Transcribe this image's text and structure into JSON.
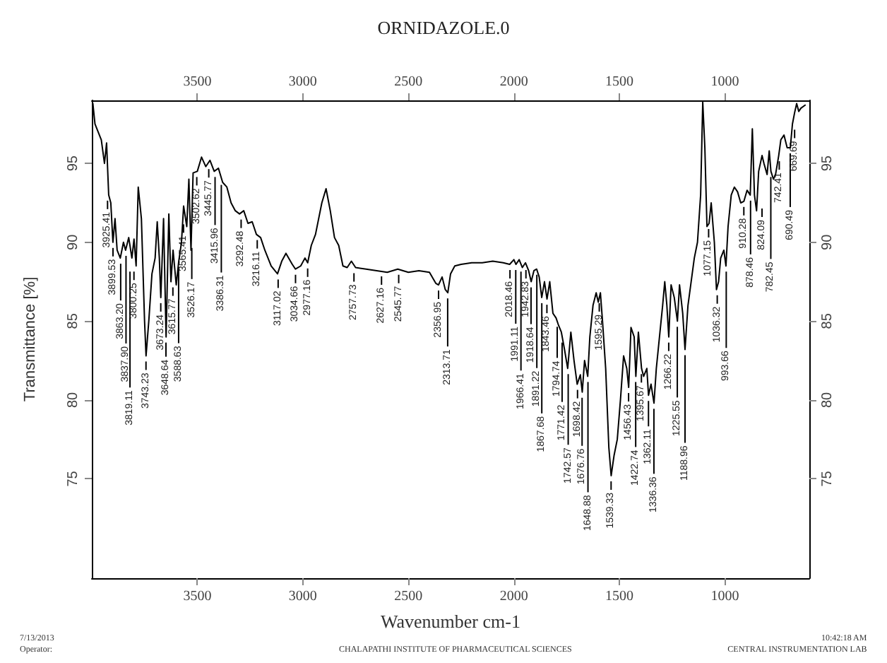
{
  "chart_data": {
    "type": "line",
    "title": "ORNIDAZOLE.0",
    "xlabel": "Wavenumber cm-1",
    "ylabel": "Transmittance [%]",
    "xlim": [
      4000,
      600
    ],
    "xticks": [
      3500,
      3000,
      2500,
      2000,
      1500,
      1000
    ],
    "x2lim": [
      4000,
      600
    ],
    "x2ticks": [
      3500,
      3000,
      2500,
      2000,
      1500,
      1000
    ],
    "ylim": [
      68.7,
      99
    ],
    "yticks": [
      75,
      80,
      85,
      90,
      95
    ],
    "y2lim": [
      68.7,
      99
    ],
    "y2ticks": [
      75,
      80,
      85,
      90,
      95
    ],
    "grid": false,
    "marker": "none",
    "line_style": "solid",
    "series": [
      {
        "color": "#000000",
        "x": [
          3995,
          3985,
          3970,
          3955,
          3940,
          3930,
          3920,
          3910,
          3900,
          3890,
          3880,
          3865,
          3850,
          3840,
          3825,
          3810,
          3800,
          3790,
          3780,
          3765,
          3750,
          3743,
          3730,
          3715,
          3700,
          3690,
          3680,
          3673,
          3660,
          3648,
          3635,
          3625,
          3615,
          3600,
          3588,
          3575,
          3565,
          3550,
          3540,
          3530,
          3520,
          3500,
          3480,
          3460,
          3440,
          3420,
          3400,
          3380,
          3360,
          3340,
          3320,
          3300,
          3280,
          3260,
          3240,
          3220,
          3200,
          3180,
          3150,
          3120,
          3100,
          3080,
          3050,
          3035,
          3010,
          2990,
          2977,
          2960,
          2940,
          2910,
          2890,
          2870,
          2850,
          2830,
          2810,
          2790,
          2770,
          2750,
          2700,
          2650,
          2600,
          2550,
          2500,
          2450,
          2400,
          2370,
          2357,
          2340,
          2325,
          2313,
          2300,
          2280,
          2250,
          2200,
          2150,
          2100,
          2050,
          2020,
          2000,
          1990,
          1975,
          1960,
          1945,
          1930,
          1918,
          1905,
          1892,
          1880,
          1868,
          1855,
          1843,
          1830,
          1815,
          1800,
          1790,
          1775,
          1760,
          1745,
          1730,
          1715,
          1700,
          1685,
          1676,
          1665,
          1650,
          1640,
          1625,
          1610,
          1600,
          1590,
          1580,
          1565,
          1550,
          1539,
          1525,
          1510,
          1495,
          1480,
          1465,
          1456,
          1445,
          1430,
          1422,
          1410,
          1395,
          1385,
          1370,
          1362,
          1350,
          1336,
          1325,
          1310,
          1295,
          1285,
          1275,
          1266,
          1255,
          1240,
          1225,
          1215,
          1200,
          1189,
          1175,
          1160,
          1145,
          1130,
          1115,
          1105,
          1095,
          1085,
          1075,
          1065,
          1050,
          1040,
          1030,
          1020,
          1005,
          995,
          985,
          970,
          955,
          940,
          925,
          910,
          895,
          880,
          870,
          860,
          850,
          840,
          824,
          815,
          800,
          790,
          782,
          770,
          760,
          745,
          735,
          720,
          705,
          690,
          680,
          670,
          660,
          650,
          640,
          620
        ],
        "values": [
          98.8,
          97.5,
          97,
          96.5,
          95,
          96.3,
          93,
          92.5,
          90,
          91.5,
          89.5,
          89,
          90,
          89.5,
          90.3,
          89,
          90.2,
          88.5,
          93.5,
          91.5,
          85,
          82.8,
          85,
          88,
          89,
          91.3,
          89,
          86.5,
          91.5,
          84,
          91.8,
          87.5,
          89.5,
          87.3,
          88.8,
          90,
          92.3,
          91,
          94,
          89.5,
          94.4,
          94.5,
          95.4,
          94.8,
          95.2,
          94.5,
          94.7,
          93.8,
          93.5,
          92.5,
          92,
          91.8,
          92,
          91.2,
          91.3,
          90.5,
          90.3,
          89.5,
          88.5,
          88,
          88.8,
          89.3,
          88.6,
          88.3,
          88.5,
          89,
          88.7,
          89.8,
          90.5,
          92.5,
          93.4,
          92,
          90.3,
          89.8,
          88.5,
          88.4,
          88.8,
          88.4,
          88.3,
          88.2,
          88.1,
          88.3,
          88.1,
          88.2,
          88.1,
          87.4,
          87.3,
          87.8,
          87,
          86.8,
          88,
          88.5,
          88.6,
          88.7,
          88.7,
          88.8,
          88.7,
          88.6,
          88.9,
          88.6,
          88.9,
          88.4,
          88.7,
          88.2,
          87.5,
          88.2,
          88.3,
          87.8,
          86.5,
          87.5,
          86.4,
          87.5,
          85.5,
          85.2,
          84.8,
          84.3,
          83.2,
          82,
          84.3,
          82.5,
          81,
          81.6,
          80.5,
          82.5,
          81.5,
          84,
          86,
          86.8,
          86.2,
          86.8,
          85,
          82,
          77,
          75.2,
          76.5,
          77.5,
          80,
          82.8,
          82,
          80.8,
          84.6,
          84,
          81.5,
          84.3,
          82,
          81.5,
          82,
          80.3,
          81,
          79.8,
          82,
          84,
          86,
          87.5,
          86,
          84,
          87.3,
          86.5,
          85,
          87.3,
          85.5,
          83.2,
          86,
          87.5,
          89,
          90,
          93,
          98.9,
          96,
          91,
          91.2,
          92.5,
          90,
          87,
          87.5,
          89,
          89.5,
          88.5,
          91,
          93,
          93.5,
          93.2,
          92.5,
          92.6,
          93.3,
          93,
          97.2,
          93,
          92,
          94.5,
          95.5,
          95,
          94.3,
          95.8,
          94.5,
          94,
          94.3,
          95.5,
          96.5,
          96.8,
          96,
          96,
          97.5,
          98.2,
          98.8,
          98.3,
          98.5,
          98.7
        ]
      }
    ],
    "annotations": [
      {
        "text": "3925.41",
        "x": 3925.41,
        "y": 93
      },
      {
        "text": "3899.53",
        "x": 3899.53,
        "y": 90
      },
      {
        "text": "3863.20",
        "x": 3863.2,
        "y": 89
      },
      {
        "text": "3837.90",
        "x": 3837.9,
        "y": 89.5
      },
      {
        "text": "3819.11",
        "x": 3819.11,
        "y": 88.5
      },
      {
        "text": "3800.25",
        "x": 3800.25,
        "y": 88.5
      },
      {
        "text": "3743.23",
        "x": 3743.23,
        "y": 82.8
      },
      {
        "text": "3673.24",
        "x": 3673.24,
        "y": 86.5
      },
      {
        "text": "3648.64",
        "x": 3648.64,
        "y": 84
      },
      {
        "text": "3615.77",
        "x": 3615.77,
        "y": 87.5
      },
      {
        "text": "3588.63",
        "x": 3588.63,
        "y": 88.8
      },
      {
        "text": "3565.41",
        "x": 3565.41,
        "y": 91.5
      },
      {
        "text": "3526.17",
        "x": 3526.17,
        "y": 90
      },
      {
        "text": "3502.62",
        "x": 3502.62,
        "y": 94.5
      },
      {
        "text": "3445.77",
        "x": 3445.77,
        "y": 95
      },
      {
        "text": "3415.96",
        "x": 3415.96,
        "y": 94.5
      },
      {
        "text": "3386.31",
        "x": 3386.31,
        "y": 94
      },
      {
        "text": "3292.48",
        "x": 3292.48,
        "y": 91.8
      },
      {
        "text": "3216.11",
        "x": 3216.11,
        "y": 90.5
      },
      {
        "text": "3117.02",
        "x": 3117.02,
        "y": 88
      },
      {
        "text": "3034.66",
        "x": 3034.66,
        "y": 88.3
      },
      {
        "text": "2977.16",
        "x": 2977.16,
        "y": 88.7
      },
      {
        "text": "2757.73",
        "x": 2757.73,
        "y": 88.4
      },
      {
        "text": "2627.16",
        "x": 2627.16,
        "y": 88.2
      },
      {
        "text": "2545.77",
        "x": 2545.77,
        "y": 88.3
      },
      {
        "text": "2356.95",
        "x": 2356.95,
        "y": 87.3
      },
      {
        "text": "2313.71",
        "x": 2313.71,
        "y": 86.8
      },
      {
        "text": "2018.46",
        "x": 2018.46,
        "y": 88.6
      },
      {
        "text": "1991.11",
        "x": 1991.11,
        "y": 88.6
      },
      {
        "text": "1966.41",
        "x": 1966.41,
        "y": 88.5
      },
      {
        "text": "1942.83",
        "x": 1942.83,
        "y": 88.6
      },
      {
        "text": "1918.64",
        "x": 1918.64,
        "y": 87.5
      },
      {
        "text": "1891.22",
        "x": 1891.22,
        "y": 88.3
      },
      {
        "text": "1867.68",
        "x": 1867.68,
        "y": 86.5
      },
      {
        "text": "1843.46",
        "x": 1843.46,
        "y": 86.4
      },
      {
        "text": "1794.74",
        "x": 1794.74,
        "y": 85
      },
      {
        "text": "1771.42",
        "x": 1771.42,
        "y": 84
      },
      {
        "text": "1742.57",
        "x": 1742.57,
        "y": 82
      },
      {
        "text": "1698.42",
        "x": 1698.42,
        "y": 81
      },
      {
        "text": "1676.76",
        "x": 1676.76,
        "y": 80.5
      },
      {
        "text": "1648.88",
        "x": 1648.88,
        "y": 81.5
      },
      {
        "text": "1595.29",
        "x": 1595.29,
        "y": 86.5
      },
      {
        "text": "1539.33",
        "x": 1539.33,
        "y": 75.2
      },
      {
        "text": "1456.43",
        "x": 1456.43,
        "y": 80.8
      },
      {
        "text": "1422.74",
        "x": 1422.74,
        "y": 81.5
      },
      {
        "text": "1395.67",
        "x": 1395.67,
        "y": 82
      },
      {
        "text": "1362.11",
        "x": 1362.11,
        "y": 80.3
      },
      {
        "text": "1336.36",
        "x": 1336.36,
        "y": 79.8
      },
      {
        "text": "1266.22",
        "x": 1266.22,
        "y": 84
      },
      {
        "text": "1225.55",
        "x": 1225.55,
        "y": 85
      },
      {
        "text": "1188.96",
        "x": 1188.96,
        "y": 83.2
      },
      {
        "text": "1077.15",
        "x": 1077.15,
        "y": 91.2
      },
      {
        "text": "1036.32",
        "x": 1036.32,
        "y": 87
      },
      {
        "text": "993.66",
        "x": 993.66,
        "y": 88.5
      },
      {
        "text": "910.28",
        "x": 910.28,
        "y": 92.6
      },
      {
        "text": "878.46",
        "x": 878.46,
        "y": 93
      },
      {
        "text": "824.09",
        "x": 824.09,
        "y": 92.5
      },
      {
        "text": "782.45",
        "x": 782.45,
        "y": 94.5
      },
      {
        "text": "742.41",
        "x": 742.41,
        "y": 95.5
      },
      {
        "text": "690.49",
        "x": 690.49,
        "y": 96
      },
      {
        "text": "669.69",
        "x": 669.69,
        "y": 97.5
      },
      "7/13/2013",
      "Operator:",
      "CHALAPATHI INSTITUTE OF PHARMACEUTICAL SCIENCES",
      "10:42:18 AM",
      "CENTRAL INSTRUMENTATION LAB"
    ]
  }
}
